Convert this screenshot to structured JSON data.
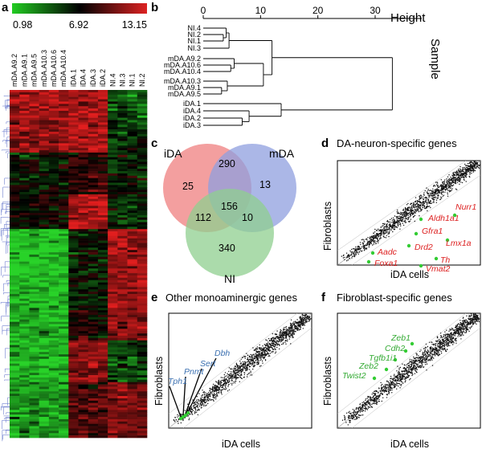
{
  "panels": {
    "a": {
      "label": "a",
      "colorbar": {
        "min": "0.98",
        "mid": "6.92",
        "max": "13.15",
        "colors": [
          "#22cc22",
          "#000000",
          "#dd2222"
        ]
      },
      "columns": [
        "mDA.A9.2",
        "mDA.A9.1",
        "mDA.A9.5",
        "mDA.A10.3",
        "mDA.A10.6",
        "mDA.A10.4",
        "iDA.1",
        "iDA.4",
        "iDA.3",
        "iDA.2",
        "NI.4",
        "NI.3",
        "NI.1",
        "NI.2"
      ]
    },
    "b": {
      "label": "b",
      "axis_title": "Height",
      "side_title": "Sample",
      "ticks": [
        "0",
        "10",
        "20",
        "30"
      ],
      "leaves": [
        "NI.4",
        "NI.2",
        "NI.1",
        "NI.3",
        "mDA.A9.2",
        "mDA.A10.6",
        "mDA.A10.4",
        "mDA.A10.3",
        "mDA.A9.1",
        "mDA.A9.5",
        "iDA.1",
        "iDA.4",
        "iDA.2",
        "iDA.3"
      ]
    },
    "c": {
      "label": "c",
      "sets": {
        "a": "iDA",
        "b": "mDA",
        "c": "NI"
      },
      "counts": {
        "a_only": "25",
        "ab": "290",
        "b_only": "13",
        "abc": "156",
        "ac": "112",
        "bc": "10",
        "c_only": "340"
      },
      "colors": {
        "a": "#ef7f7f",
        "b": "#8f9fdf",
        "c": "#8fcf8f"
      }
    },
    "d": {
      "label": "d",
      "title": "DA-neuron-specific genes",
      "xlabel": "iDA cells",
      "ylabel": "Fibroblasts",
      "genes": [
        "Aldh1a1",
        "Nurr1",
        "Gfra1",
        "Lmx1a",
        "Drd2",
        "Aadc",
        "Th",
        "Foxa1",
        "Vmat2"
      ],
      "gene_color": "#dd2222"
    },
    "e": {
      "label": "e",
      "title": "Other monoaminergic genes",
      "xlabel": "iDA cells",
      "ylabel": "Fibroblasts",
      "genes": [
        "Dbh",
        "Sert",
        "Pnmt",
        "Tph1"
      ],
      "gene_color": "#3a6fb0"
    },
    "f": {
      "label": "f",
      "title": "Fibroblast-specific genes",
      "xlabel": "iDA cells",
      "ylabel": "Fibroblasts",
      "genes": [
        "Zeb1",
        "Cdh2",
        "Tgfb1i1",
        "Zeb2",
        "Twist2"
      ],
      "gene_color": "#33aa33"
    }
  }
}
